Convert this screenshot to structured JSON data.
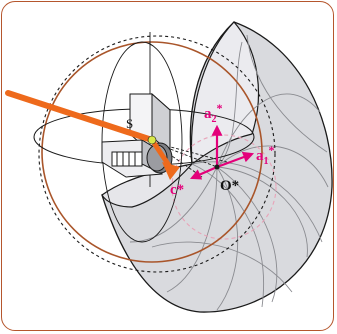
{
  "diagram": {
    "labels": {
      "a1": "a",
      "a1_sub": "1",
      "a1_sup": "*",
      "a2": "a",
      "a2_sub": "2",
      "a2_sup": "*",
      "c": "c*",
      "origin": "O*",
      "sample": "S"
    },
    "colors": {
      "frame_border": "#b5562d",
      "ewald_circle": "#a9552a",
      "beam": "#ee6a1c",
      "reciprocal_axes": "#e3007a",
      "shell_fill": "#d9dade",
      "shell_light": "#ebebef",
      "line": "#1a1a1a"
    }
  }
}
